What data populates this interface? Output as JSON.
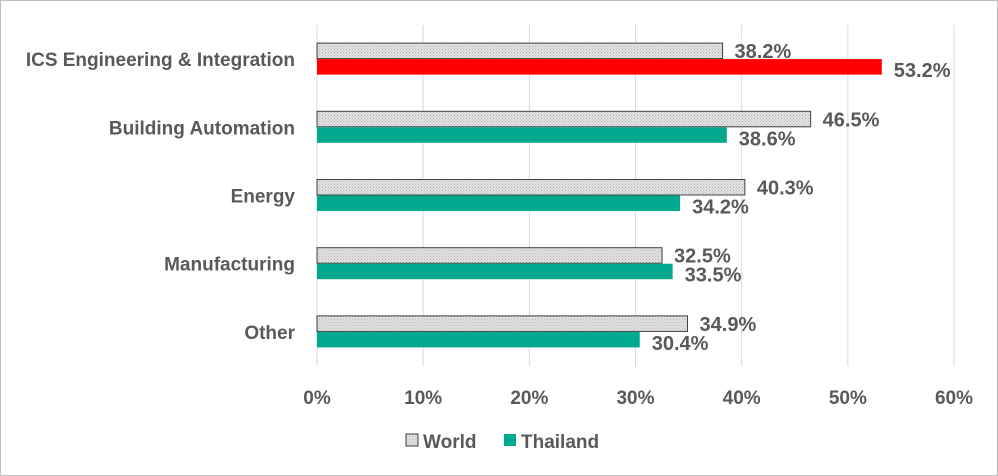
{
  "chart_data": {
    "type": "bar",
    "orientation": "horizontal",
    "categories": [
      "ICS Engineering & Integration",
      "Building Automation",
      "Energy",
      "Manufacturing",
      "Other"
    ],
    "series": [
      {
        "name": "World",
        "values": [
          38.2,
          46.5,
          40.3,
          32.5,
          34.9
        ],
        "color": "#d9d9d9",
        "pattern": "dotted-gray"
      },
      {
        "name": "Thailand",
        "values": [
          53.2,
          38.6,
          34.2,
          33.5,
          30.4
        ],
        "color": "#00a88f"
      }
    ],
    "highlight": {
      "category_index": 0,
      "series_index": 1,
      "color": "#ff0000"
    },
    "data_labels": [
      [
        "38.2%",
        "46.5%",
        "40.3%",
        "32.5%",
        "34.9%"
      ],
      [
        "53.2%",
        "38.6%",
        "34.2%",
        "33.5%",
        "30.4%"
      ]
    ],
    "xlim": [
      0,
      60
    ],
    "xticks": [
      "0%",
      "10%",
      "20%",
      "30%",
      "40%",
      "50%",
      "60%"
    ],
    "grid": "vertical",
    "legend_position": "bottom",
    "title": "",
    "xlabel": "",
    "ylabel": ""
  }
}
